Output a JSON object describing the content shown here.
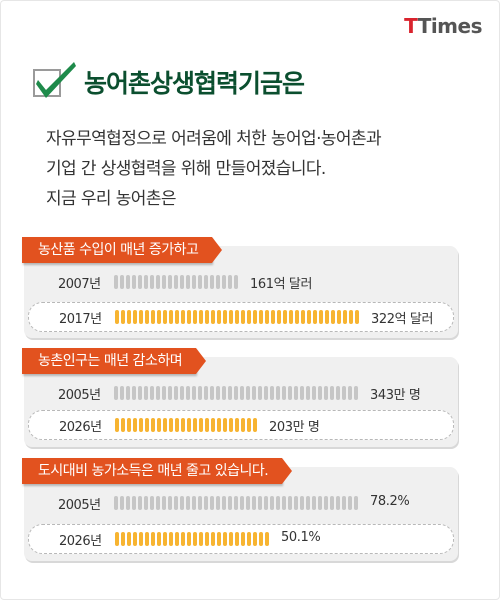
{
  "logo": {
    "t": "T",
    "rest": "Times"
  },
  "title": "농어촌상생협력기금은",
  "intro": [
    "자유무역협정으로 어려움에 처한 농어업·농어촌과",
    "기업 간 상생협력을 위해 만들어졌습니다.",
    "지금 우리 농어촌은"
  ],
  "colors": {
    "ribbon": "#e2521f",
    "bar_old": "#c6c6c6",
    "bar_new": "#f7b431",
    "title": "#0b4f2f"
  },
  "icons": [
    "check-icon"
  ],
  "chart_data": [
    {
      "type": "bar",
      "title": "농산품 수입이 매년 증가하고",
      "categories": [
        "2007년",
        "2017년"
      ],
      "values": [
        161,
        322
      ],
      "value_labels": [
        "161억 달러",
        "322억 달러"
      ],
      "unit": "억 달러",
      "highlight_index": 1
    },
    {
      "type": "bar",
      "title": "농촌인구는 매년 감소하며",
      "categories": [
        "2005년",
        "2026년"
      ],
      "values": [
        343,
        203
      ],
      "value_labels": [
        "343만 명",
        "203만 명"
      ],
      "unit": "만 명",
      "highlight_index": 1
    },
    {
      "type": "bar",
      "title": "도시대비 농가소득은 매년 줄고 있습니다.",
      "categories": [
        "2005년",
        "2026년"
      ],
      "values": [
        78.2,
        50.1
      ],
      "value_labels": [
        "78.2%",
        "50.1%"
      ],
      "unit": "%",
      "highlight_index": 1
    }
  ]
}
